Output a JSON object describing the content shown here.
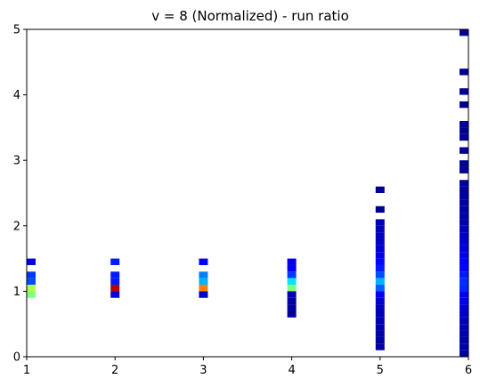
{
  "chart_data": {
    "type": "heatmap",
    "title": "v = 8 (Normalized) - run ratio",
    "xlabel": "",
    "ylabel": "",
    "xlim": [
      1,
      6
    ],
    "ylim": [
      0,
      5
    ],
    "x_ticks": [
      1,
      2,
      3,
      4,
      5,
      6
    ],
    "y_ticks": [
      0,
      1,
      2,
      3,
      4,
      5
    ],
    "colormap": "jet",
    "bin_height": 0.1,
    "columns": [
      {
        "x": 1,
        "cells": [
          {
            "y0": 1.4,
            "v": 0.1
          },
          {
            "y0": 1.2,
            "v": 0.18
          },
          {
            "y0": 1.1,
            "v": 0.2
          },
          {
            "y0": 1.0,
            "v": 0.55
          },
          {
            "y0": 0.9,
            "v": 0.5
          }
        ]
      },
      {
        "x": 2,
        "cells": [
          {
            "y0": 1.4,
            "v": 0.15
          },
          {
            "y0": 1.2,
            "v": 0.15
          },
          {
            "y0": 1.1,
            "v": 0.15
          },
          {
            "y0": 1.0,
            "v": 0.95
          },
          {
            "y0": 0.9,
            "v": 0.1
          }
        ]
      },
      {
        "x": 3,
        "cells": [
          {
            "y0": 1.4,
            "v": 0.12
          },
          {
            "y0": 1.2,
            "v": 0.25
          },
          {
            "y0": 1.1,
            "v": 0.3
          },
          {
            "y0": 1.0,
            "v": 0.75
          },
          {
            "y0": 0.9,
            "v": 0.08
          }
        ]
      },
      {
        "x": 4,
        "cells": [
          {
            "y0": 1.4,
            "v": 0.1
          },
          {
            "y0": 1.3,
            "v": 0.12
          },
          {
            "y0": 1.2,
            "v": 0.18
          },
          {
            "y0": 1.1,
            "v": 0.35
          },
          {
            "y0": 1.0,
            "v": 0.5
          },
          {
            "y0": 0.9,
            "v": 0.05
          },
          {
            "y0": 0.8,
            "v": 0.03
          },
          {
            "y0": 0.7,
            "v": 0.03
          },
          {
            "y0": 0.6,
            "v": 0.02
          }
        ]
      },
      {
        "x": 5,
        "cells": [
          {
            "y0": 2.5,
            "v": 0.02
          },
          {
            "y0": 2.2,
            "v": 0.02
          },
          {
            "y0": 2.0,
            "v": 0.05
          },
          {
            "y0": 1.9,
            "v": 0.06
          },
          {
            "y0": 1.8,
            "v": 0.06
          },
          {
            "y0": 1.7,
            "v": 0.07
          },
          {
            "y0": 1.6,
            "v": 0.08
          },
          {
            "y0": 1.5,
            "v": 0.1
          },
          {
            "y0": 1.4,
            "v": 0.13
          },
          {
            "y0": 1.3,
            "v": 0.15
          },
          {
            "y0": 1.2,
            "v": 0.2
          },
          {
            "y0": 1.1,
            "v": 0.3
          },
          {
            "y0": 1.0,
            "v": 0.22
          },
          {
            "y0": 0.9,
            "v": 0.12
          },
          {
            "y0": 0.8,
            "v": 0.08
          },
          {
            "y0": 0.7,
            "v": 0.06
          },
          {
            "y0": 0.6,
            "v": 0.05
          },
          {
            "y0": 0.5,
            "v": 0.05
          },
          {
            "y0": 0.4,
            "v": 0.04
          },
          {
            "y0": 0.3,
            "v": 0.04
          },
          {
            "y0": 0.2,
            "v": 0.03
          },
          {
            "y0": 0.1,
            "v": 0.03
          }
        ]
      },
      {
        "x": 6,
        "cells": [
          {
            "y0": 4.9,
            "v": 0.02
          },
          {
            "y0": 4.3,
            "v": 0.02
          },
          {
            "y0": 4.0,
            "v": 0.02
          },
          {
            "y0": 3.8,
            "v": 0.02
          },
          {
            "y0": 3.5,
            "v": 0.02
          },
          {
            "y0": 3.4,
            "v": 0.02
          },
          {
            "y0": 3.3,
            "v": 0.02
          },
          {
            "y0": 3.1,
            "v": 0.02
          },
          {
            "y0": 2.9,
            "v": 0.02
          },
          {
            "y0": 2.8,
            "v": 0.02
          },
          {
            "y0": 2.6,
            "v": 0.03
          },
          {
            "y0": 2.5,
            "v": 0.03
          },
          {
            "y0": 2.4,
            "v": 0.03
          },
          {
            "y0": 2.3,
            "v": 0.03
          },
          {
            "y0": 2.2,
            "v": 0.04
          },
          {
            "y0": 2.1,
            "v": 0.04
          },
          {
            "y0": 2.0,
            "v": 0.05
          },
          {
            "y0": 1.9,
            "v": 0.06
          },
          {
            "y0": 1.8,
            "v": 0.07
          },
          {
            "y0": 1.7,
            "v": 0.08
          },
          {
            "y0": 1.6,
            "v": 0.09
          },
          {
            "y0": 1.5,
            "v": 0.1
          },
          {
            "y0": 1.4,
            "v": 0.12
          },
          {
            "y0": 1.3,
            "v": 0.13
          },
          {
            "y0": 1.2,
            "v": 0.15
          },
          {
            "y0": 1.1,
            "v": 0.17
          },
          {
            "y0": 1.0,
            "v": 0.16
          },
          {
            "y0": 0.9,
            "v": 0.12
          },
          {
            "y0": 0.8,
            "v": 0.1
          },
          {
            "y0": 0.7,
            "v": 0.08
          },
          {
            "y0": 0.6,
            "v": 0.07
          },
          {
            "y0": 0.5,
            "v": 0.06
          },
          {
            "y0": 0.4,
            "v": 0.05
          },
          {
            "y0": 0.3,
            "v": 0.05
          },
          {
            "y0": 0.2,
            "v": 0.04
          },
          {
            "y0": 0.1,
            "v": 0.04
          },
          {
            "y0": 0.0,
            "v": 0.03
          }
        ]
      }
    ]
  }
}
